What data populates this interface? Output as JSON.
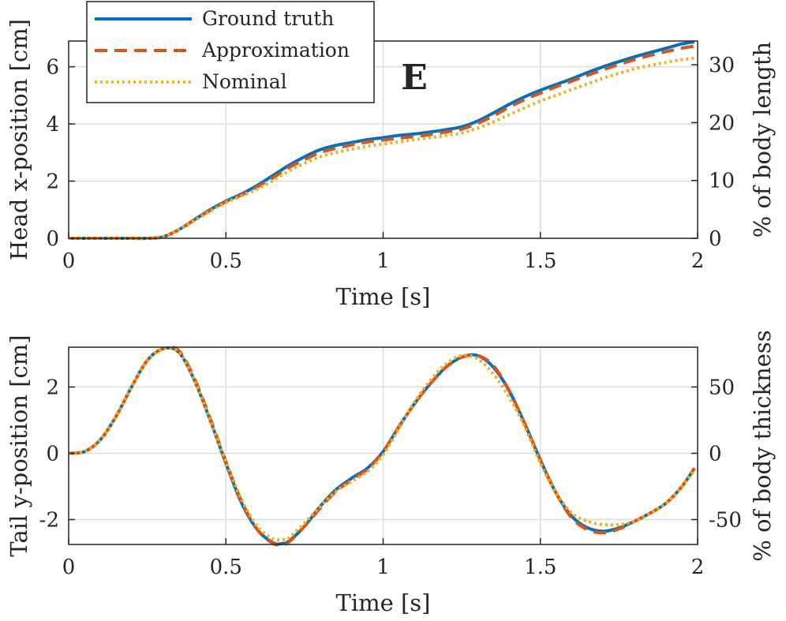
{
  "figure": {
    "panel_letter": "E"
  },
  "colors": {
    "ground_truth": "#0072BD",
    "approximation": "#D95319",
    "nominal": "#EDB120",
    "grid": "#DCDCDC",
    "axis": "#262626"
  },
  "legend": [
    {
      "name": "Ground truth",
      "style": "solid",
      "color": "#0072BD"
    },
    {
      "name": "Approximation",
      "style": "dashed",
      "color": "#D95319"
    },
    {
      "name": "Nominal",
      "style": "dotted",
      "color": "#EDB120"
    }
  ],
  "chart_data": [
    {
      "type": "line",
      "title": "",
      "xlabel": "Time [s]",
      "ylabel": "Head x-position [cm]",
      "ylabel_right": "% of body length",
      "xlim": [
        0,
        2
      ],
      "ylim": [
        0,
        6.9
      ],
      "ylim_right": [
        0,
        34.1
      ],
      "xticks": [
        0,
        0.5,
        1,
        1.5,
        2
      ],
      "xtick_labels": [
        "0",
        "0.5",
        "1",
        "1.5",
        "2"
      ],
      "yticks": [
        0,
        2,
        4,
        6
      ],
      "ytick_labels": [
        "0",
        "2",
        "4",
        "6"
      ],
      "yticks_right": [
        0,
        10,
        20,
        30
      ],
      "ytick_labels_right": [
        "0",
        "10",
        "20",
        "30"
      ],
      "grid": true,
      "legend_position": "top-left",
      "x": [
        0,
        0.1,
        0.2,
        0.25,
        0.3,
        0.35,
        0.4,
        0.45,
        0.5,
        0.55,
        0.6,
        0.65,
        0.7,
        0.75,
        0.8,
        0.85,
        0.9,
        0.95,
        1.0,
        1.05,
        1.1,
        1.15,
        1.2,
        1.25,
        1.3,
        1.35,
        1.4,
        1.45,
        1.5,
        1.55,
        1.6,
        1.65,
        1.7,
        1.75,
        1.8,
        1.85,
        1.9,
        1.95,
        1.99
      ],
      "series": [
        {
          "name": "Ground truth",
          "values": [
            0,
            0,
            0,
            0,
            0.05,
            0.3,
            0.65,
            1.0,
            1.3,
            1.55,
            1.85,
            2.2,
            2.55,
            2.85,
            3.1,
            3.25,
            3.35,
            3.45,
            3.52,
            3.6,
            3.65,
            3.72,
            3.8,
            3.9,
            4.1,
            4.38,
            4.68,
            4.95,
            5.18,
            5.38,
            5.58,
            5.8,
            6.0,
            6.18,
            6.35,
            6.5,
            6.65,
            6.8,
            6.87
          ]
        },
        {
          "name": "Approximation",
          "values": [
            0,
            0,
            0,
            0,
            0.05,
            0.3,
            0.65,
            0.98,
            1.28,
            1.52,
            1.8,
            2.12,
            2.47,
            2.75,
            3.0,
            3.15,
            3.27,
            3.37,
            3.44,
            3.5,
            3.56,
            3.63,
            3.72,
            3.82,
            4.02,
            4.28,
            4.58,
            4.85,
            5.08,
            5.3,
            5.5,
            5.7,
            5.9,
            6.08,
            6.25,
            6.4,
            6.53,
            6.65,
            6.72
          ]
        },
        {
          "name": "Nominal",
          "values": [
            0,
            0,
            0,
            0,
            0.05,
            0.3,
            0.62,
            0.95,
            1.25,
            1.48,
            1.72,
            2.02,
            2.35,
            2.62,
            2.85,
            3.0,
            3.12,
            3.22,
            3.3,
            3.37,
            3.45,
            3.52,
            3.6,
            3.68,
            3.85,
            4.07,
            4.32,
            4.57,
            4.8,
            5.0,
            5.2,
            5.4,
            5.6,
            5.77,
            5.93,
            6.05,
            6.15,
            6.25,
            6.3
          ]
        }
      ]
    },
    {
      "type": "line",
      "title": "",
      "xlabel": "Time [s]",
      "ylabel": "Tail y-position [cm]",
      "ylabel_right": "% of body thickness",
      "xlim": [
        0,
        2
      ],
      "ylim": [
        -2.75,
        3.2
      ],
      "ylim_right": [
        -68.75,
        80
      ],
      "xticks": [
        0,
        0.5,
        1,
        1.5,
        2
      ],
      "xtick_labels": [
        "0",
        "0.5",
        "1",
        "1.5",
        "2"
      ],
      "yticks": [
        -2,
        0,
        2
      ],
      "ytick_labels": [
        "-2",
        "0",
        "2"
      ],
      "yticks_right": [
        -50,
        0,
        50
      ],
      "ytick_labels_right": [
        "-50",
        "0",
        "50"
      ],
      "grid": true,
      "x": [
        0,
        0.05,
        0.1,
        0.15,
        0.2,
        0.25,
        0.3,
        0.35,
        0.4,
        0.45,
        0.5,
        0.55,
        0.6,
        0.65,
        0.68,
        0.7,
        0.75,
        0.8,
        0.85,
        0.9,
        0.95,
        1.0,
        1.05,
        1.1,
        1.15,
        1.2,
        1.25,
        1.3,
        1.35,
        1.4,
        1.45,
        1.5,
        1.55,
        1.6,
        1.65,
        1.7,
        1.75,
        1.8,
        1.85,
        1.9,
        1.95,
        1.99
      ],
      "series": [
        {
          "name": "Ground truth",
          "values": [
            0,
            0.05,
            0.4,
            1.1,
            2.0,
            2.8,
            3.15,
            3.05,
            2.2,
            1.0,
            -0.3,
            -1.5,
            -2.3,
            -2.7,
            -2.72,
            -2.65,
            -2.2,
            -1.6,
            -1.1,
            -0.75,
            -0.45,
            0.05,
            0.8,
            1.5,
            2.1,
            2.6,
            2.9,
            2.95,
            2.6,
            1.9,
            0.9,
            -0.2,
            -1.2,
            -1.9,
            -2.25,
            -2.35,
            -2.25,
            -2.05,
            -1.8,
            -1.5,
            -1.0,
            -0.45
          ]
        },
        {
          "name": "Approximation",
          "values": [
            0,
            0.05,
            0.4,
            1.1,
            2.0,
            2.8,
            3.15,
            3.1,
            2.25,
            1.05,
            -0.25,
            -1.45,
            -2.3,
            -2.72,
            -2.75,
            -2.68,
            -2.2,
            -1.65,
            -1.15,
            -0.8,
            -0.48,
            0.05,
            0.8,
            1.5,
            2.1,
            2.6,
            2.9,
            2.95,
            2.65,
            1.9,
            0.9,
            -0.2,
            -1.2,
            -1.95,
            -2.3,
            -2.4,
            -2.28,
            -2.05,
            -1.8,
            -1.5,
            -1.0,
            -0.45
          ]
        },
        {
          "name": "Nominal",
          "values": [
            0,
            0.05,
            0.4,
            1.1,
            2.0,
            2.8,
            3.15,
            3.05,
            2.2,
            1.0,
            -0.25,
            -1.4,
            -2.2,
            -2.58,
            -2.6,
            -2.55,
            -2.1,
            -1.6,
            -1.15,
            -0.85,
            -0.55,
            -0.05,
            0.75,
            1.55,
            2.2,
            2.7,
            2.95,
            2.85,
            2.4,
            1.7,
            0.8,
            -0.3,
            -1.2,
            -1.8,
            -2.05,
            -2.15,
            -2.15,
            -2.05,
            -1.8,
            -1.5,
            -1.0,
            -0.5
          ]
        }
      ]
    }
  ]
}
